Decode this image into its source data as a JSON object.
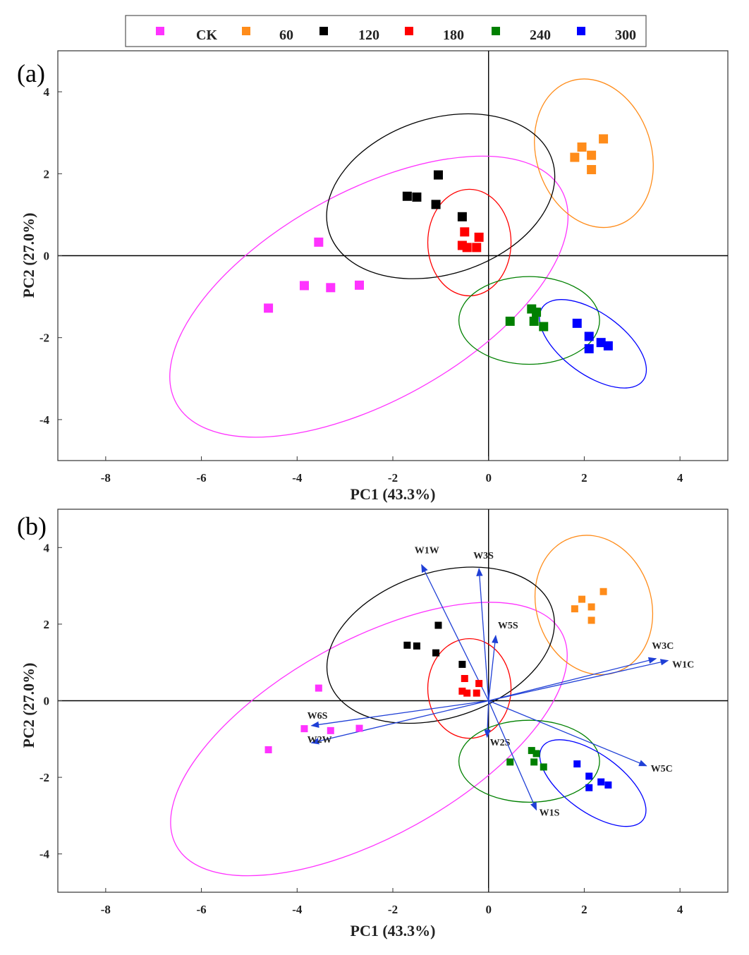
{
  "legend": {
    "entries": [
      {
        "name": "CK",
        "color": "#ff33ff"
      },
      {
        "name": "60",
        "color": "#ff8c1a"
      },
      {
        "name": "120",
        "color": "#000000"
      },
      {
        "name": "180",
        "color": "#ff0000"
      },
      {
        "name": "240",
        "color": "#008000"
      },
      {
        "name": "300",
        "color": "#0000ff"
      }
    ]
  },
  "chart_data": [
    {
      "type": "scatter",
      "panel_label": "(a)",
      "xlabel": "PC1 (43.3%)",
      "ylabel": "PC2 (27.0%)",
      "xlim": [
        -9,
        5
      ],
      "ylim": [
        -5,
        5
      ],
      "xticks": [
        -8,
        -6,
        -4,
        -2,
        0,
        2,
        4
      ],
      "yticks": [
        -4,
        -2,
        0,
        2,
        4
      ],
      "grid": false,
      "legend_position": "top-center",
      "series": [
        {
          "name": "CK",
          "color": "#ff33ff",
          "points": [
            [
              -3.55,
              0.33
            ],
            [
              -3.85,
              -0.73
            ],
            [
              -3.3,
              -0.78
            ],
            [
              -2.7,
              -0.72
            ],
            [
              -4.6,
              -1.28
            ]
          ],
          "ellipse": {
            "cx": -2.5,
            "cy": -1.0,
            "rx": 4.6,
            "ry": 2.55,
            "angle": 29
          }
        },
        {
          "name": "60",
          "color": "#ff8c1a",
          "points": [
            [
              2.4,
              2.85
            ],
            [
              1.95,
              2.65
            ],
            [
              2.15,
              2.45
            ],
            [
              1.8,
              2.4
            ],
            [
              2.15,
              2.1
            ]
          ],
          "ellipse": {
            "cx": 2.2,
            "cy": 2.5,
            "rx": 1.2,
            "ry": 1.85,
            "angle": 18
          }
        },
        {
          "name": "120",
          "color": "#000000",
          "points": [
            [
              -1.05,
              1.97
            ],
            [
              -1.7,
              1.45
            ],
            [
              -1.5,
              1.43
            ],
            [
              -1.1,
              1.25
            ],
            [
              -0.55,
              0.95
            ]
          ],
          "ellipse": {
            "cx": -1.0,
            "cy": 1.45,
            "rx": 2.45,
            "ry": 1.9,
            "angle": 18
          }
        },
        {
          "name": "180",
          "color": "#ff0000",
          "points": [
            [
              -0.5,
              0.58
            ],
            [
              -0.2,
              0.45
            ],
            [
              -0.55,
              0.25
            ],
            [
              -0.45,
              0.2
            ],
            [
              -0.25,
              0.2
            ]
          ],
          "ellipse": {
            "cx": -0.4,
            "cy": 0.32,
            "rx": 0.87,
            "ry": 1.3,
            "angle": 0
          }
        },
        {
          "name": "240",
          "color": "#008000",
          "points": [
            [
              0.45,
              -1.6
            ],
            [
              0.9,
              -1.3
            ],
            [
              1.0,
              -1.38
            ],
            [
              0.95,
              -1.6
            ],
            [
              1.15,
              -1.73
            ]
          ],
          "ellipse": {
            "cx": 0.85,
            "cy": -1.58,
            "rx": 1.47,
            "ry": 1.07,
            "angle": 0
          }
        },
        {
          "name": "300",
          "color": "#0000ff",
          "points": [
            [
              1.85,
              -1.65
            ],
            [
              2.1,
              -1.97
            ],
            [
              2.35,
              -2.12
            ],
            [
              2.5,
              -2.2
            ],
            [
              2.1,
              -2.27
            ]
          ],
          "ellipse": {
            "cx": 2.18,
            "cy": -2.15,
            "rx": 1.3,
            "ry": 0.75,
            "angle": -36
          }
        }
      ]
    },
    {
      "type": "scatter",
      "panel_label": "(b)",
      "xlabel": "PC1 (43.3%)",
      "ylabel": "PC2 (27.0%)",
      "xlim": [
        -9,
        5
      ],
      "ylim": [
        -5,
        5
      ],
      "xticks": [
        -8,
        -6,
        -4,
        -2,
        0,
        2,
        4
      ],
      "yticks": [
        -4,
        -2,
        0,
        2,
        4
      ],
      "grid": false,
      "series": [
        {
          "name": "CK",
          "color": "#ff33ff",
          "points": [
            [
              -3.55,
              0.33
            ],
            [
              -3.85,
              -0.73
            ],
            [
              -3.3,
              -0.78
            ],
            [
              -2.7,
              -0.72
            ],
            [
              -4.6,
              -1.28
            ]
          ],
          "ellipse": {
            "cx": -2.5,
            "cy": -1.0,
            "rx": 4.6,
            "ry": 2.55,
            "angle": 29
          }
        },
        {
          "name": "60",
          "color": "#ff8c1a",
          "points": [
            [
              2.4,
              2.85
            ],
            [
              1.95,
              2.65
            ],
            [
              2.15,
              2.45
            ],
            [
              1.8,
              2.4
            ],
            [
              2.15,
              2.1
            ]
          ],
          "ellipse": {
            "cx": 2.2,
            "cy": 2.5,
            "rx": 1.2,
            "ry": 1.85,
            "angle": 18
          }
        },
        {
          "name": "120",
          "color": "#000000",
          "points": [
            [
              -1.05,
              1.97
            ],
            [
              -1.7,
              1.45
            ],
            [
              -1.5,
              1.43
            ],
            [
              -1.1,
              1.25
            ],
            [
              -0.55,
              0.95
            ]
          ],
          "ellipse": {
            "cx": -1.0,
            "cy": 1.45,
            "rx": 2.45,
            "ry": 1.9,
            "angle": 18
          }
        },
        {
          "name": "180",
          "color": "#ff0000",
          "points": [
            [
              -0.5,
              0.58
            ],
            [
              -0.2,
              0.45
            ],
            [
              -0.55,
              0.25
            ],
            [
              -0.45,
              0.2
            ],
            [
              -0.25,
              0.2
            ]
          ],
          "ellipse": {
            "cx": -0.4,
            "cy": 0.32,
            "rx": 0.87,
            "ry": 1.3,
            "angle": 0
          }
        },
        {
          "name": "240",
          "color": "#008000",
          "points": [
            [
              0.45,
              -1.6
            ],
            [
              0.9,
              -1.3
            ],
            [
              1.0,
              -1.38
            ],
            [
              0.95,
              -1.6
            ],
            [
              1.15,
              -1.73
            ]
          ],
          "ellipse": {
            "cx": 0.85,
            "cy": -1.58,
            "rx": 1.47,
            "ry": 1.07,
            "angle": 0
          }
        },
        {
          "name": "300",
          "color": "#0000ff",
          "points": [
            [
              1.85,
              -1.65
            ],
            [
              2.1,
              -1.97
            ],
            [
              2.35,
              -2.12
            ],
            [
              2.5,
              -2.2
            ],
            [
              2.1,
              -2.27
            ]
          ],
          "ellipse": {
            "cx": 2.18,
            "cy": -2.15,
            "rx": 1.3,
            "ry": 0.75,
            "angle": -36
          }
        }
      ],
      "loadings": {
        "color": "#1f3fd6",
        "vectors": [
          {
            "name": "W1W",
            "x": -1.4,
            "y": 3.55
          },
          {
            "name": "W3S",
            "x": -0.2,
            "y": 3.45
          },
          {
            "name": "W5S",
            "x": 0.15,
            "y": 1.7
          },
          {
            "name": "W3C",
            "x": 3.5,
            "y": 1.1
          },
          {
            "name": "W1C",
            "x": 3.75,
            "y": 1.05
          },
          {
            "name": "W6S",
            "x": -3.7,
            "y": -0.65
          },
          {
            "name": "W2W",
            "x": -3.7,
            "y": -1.1
          },
          {
            "name": "W2S",
            "x": -0.03,
            "y": -0.95
          },
          {
            "name": "W5C",
            "x": 3.3,
            "y": -1.7
          },
          {
            "name": "W1S",
            "x": 1.0,
            "y": -2.85
          }
        ]
      }
    }
  ]
}
